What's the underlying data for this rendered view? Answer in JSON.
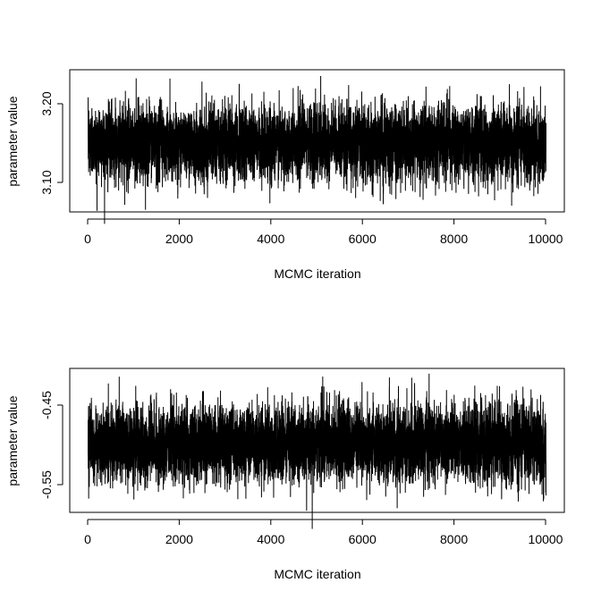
{
  "chart_data": [
    {
      "type": "line",
      "title": "",
      "xlabel": "MCMC iteration",
      "ylabel": "parameter value",
      "xlim": [
        -400,
        10400
      ],
      "ylim": [
        3.062,
        3.243
      ],
      "xticks": [
        0,
        2000,
        4000,
        6000,
        8000,
        10000
      ],
      "xtick_labels": [
        "0",
        "2000",
        "4000",
        "6000",
        "8000",
        "10000"
      ],
      "yticks": [
        3.1,
        3.2
      ],
      "ytick_labels": [
        "3.10",
        "3.20"
      ],
      "grid": false,
      "n_iterations": 10000,
      "trace_summary": {
        "center": 3.15,
        "typical_low": 3.1,
        "typical_high": 3.2,
        "observed_min": 3.07,
        "observed_max": 3.235
      },
      "peaks": [
        {
          "x": 1050,
          "y": 3.232
        },
        {
          "x": 5080,
          "y": 3.235
        },
        {
          "x": 3300,
          "y": 3.225
        },
        {
          "x": 9880,
          "y": 3.222
        },
        {
          "x": 800,
          "y": 3.071
        },
        {
          "x": 9250,
          "y": 3.07
        },
        {
          "x": 3970,
          "y": 3.073
        },
        {
          "x": 6380,
          "y": 3.076
        }
      ],
      "series": [
        {
          "color": "#000000"
        }
      ]
    },
    {
      "type": "line",
      "title": "",
      "xlabel": "MCMC iteration",
      "ylabel": "parameter value",
      "xlim": [
        -400,
        10400
      ],
      "ylim": [
        -0.583,
        -0.408
      ],
      "xticks": [
        0,
        2000,
        4000,
        6000,
        8000,
        10000
      ],
      "xtick_labels": [
        "0",
        "2000",
        "4000",
        "6000",
        "8000",
        "10000"
      ],
      "yticks": [
        -0.55,
        -0.45
      ],
      "ytick_labels": [
        "-0.55",
        "-0.45"
      ],
      "grid": false,
      "n_iterations": 10000,
      "trace_summary": {
        "center": -0.5,
        "typical_low": -0.55,
        "typical_high": -0.45,
        "observed_min": -0.578,
        "observed_max": -0.417
      },
      "peaks": [
        {
          "x": 680,
          "y": -0.418
        },
        {
          "x": 6580,
          "y": -0.419
        },
        {
          "x": 5150,
          "y": -0.43
        },
        {
          "x": 6750,
          "y": -0.578
        },
        {
          "x": 2080,
          "y": -0.566
        },
        {
          "x": 3270,
          "y": -0.567
        },
        {
          "x": 9950,
          "y": -0.567
        }
      ],
      "series": [
        {
          "color": "#000000"
        }
      ]
    }
  ]
}
